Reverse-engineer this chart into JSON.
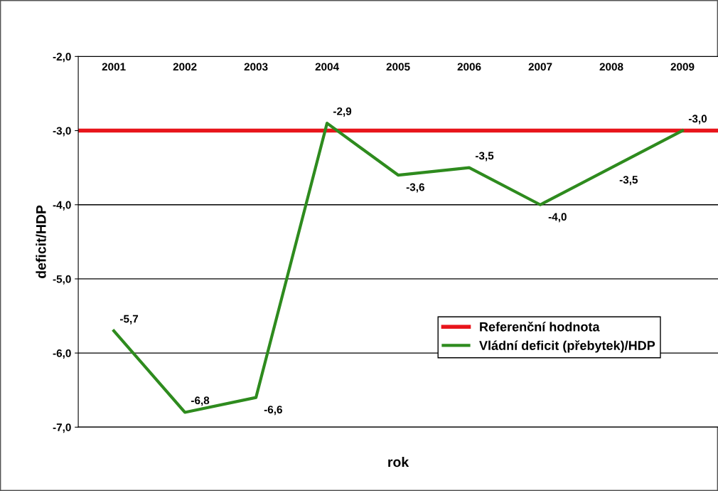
{
  "chart_data": {
    "type": "line",
    "xlabel": "rok",
    "ylabel": "deficit/HDP",
    "categories": [
      "2001",
      "2002",
      "2003",
      "2004",
      "2005",
      "2006",
      "2007",
      "2008",
      "2009"
    ],
    "series": [
      {
        "name": "Vládní deficit (přebytek)/HDP",
        "color": "#2e8b1e",
        "values": [
          -5.7,
          -6.8,
          -6.6,
          -2.9,
          -3.6,
          -3.5,
          -4.0,
          -3.5,
          -3.0
        ],
        "value_labels": [
          "-5,7",
          "-6,8",
          "-6,6",
          "-2,9",
          "-3,6",
          "-3,5",
          "-4,0",
          "-3,5",
          "-3,0"
        ]
      }
    ],
    "ref_lines": [
      {
        "axis": "y",
        "value": -3.0,
        "label": "Referenční hodnota",
        "color": "#e8151b"
      }
    ],
    "ylim": [
      -7.0,
      -2.0
    ],
    "yticks": [
      {
        "value": -7.0,
        "label": "-7,0"
      },
      {
        "value": -6.0,
        "label": "-6,0"
      },
      {
        "value": -5.0,
        "label": "-5,0"
      },
      {
        "value": -4.0,
        "label": "-4,0"
      },
      {
        "value": -3.0,
        "label": "-3,0"
      },
      {
        "value": -2.0,
        "label": "-2,0"
      }
    ],
    "grid": "y",
    "legend": "lower right",
    "marker": "none",
    "line_style": "solid"
  }
}
